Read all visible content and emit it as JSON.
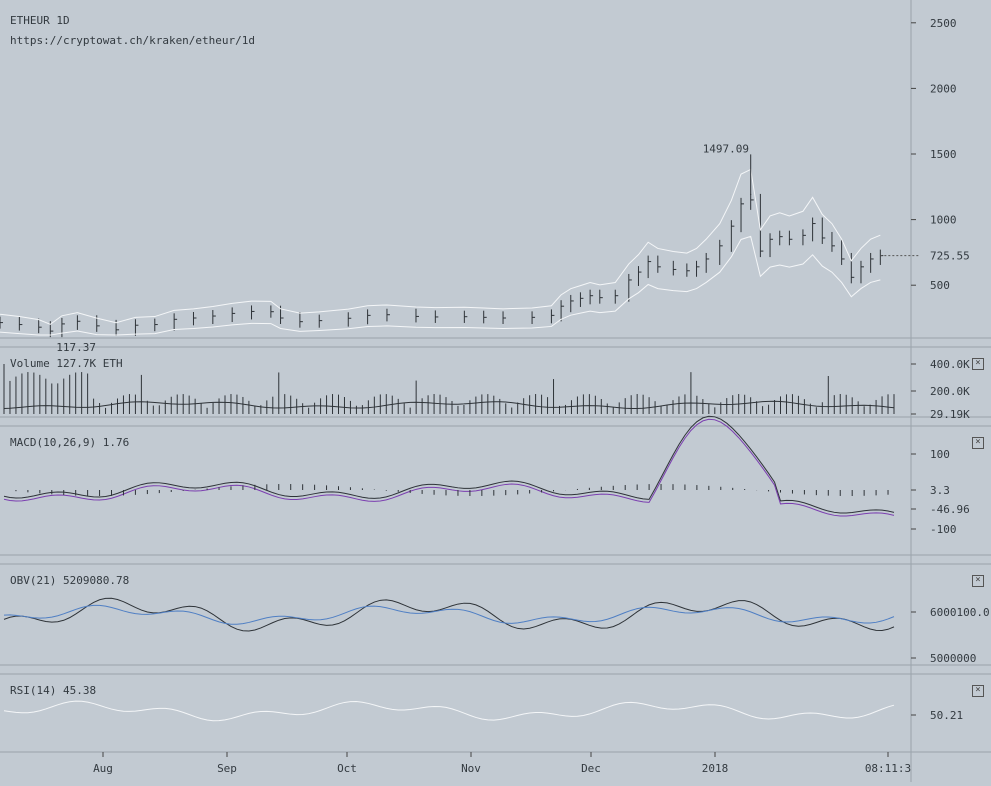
{
  "header": {
    "symbol": "ETHEUR 1D",
    "url": "https://cryptowat.ch/kraken/etheur/1d"
  },
  "time_axis": {
    "labels": [
      "Aug",
      "Sep",
      "Oct",
      "Nov",
      "Dec",
      "2018",
      "08:11:3"
    ]
  },
  "colors": {
    "background": "#c2cad2",
    "price": "#2e3338",
    "bollinger": "#f4f6f8",
    "signal": "#7b3fb0",
    "obv_ma": "#4f7fc4",
    "rsi": "#f4f6f8",
    "text": "#333a40"
  },
  "panels": {
    "volume": {
      "label": "Volume 127.7K ETH",
      "ticks": [
        "400.0K",
        "200.0K",
        "29.19K"
      ]
    },
    "macd": {
      "label": "MACD(10,26,9) 1.76",
      "ticks": [
        "100",
        "3.3",
        "-46.96",
        "-100"
      ]
    },
    "obv": {
      "label": "OBV(21) 5209080.78",
      "ticks": [
        "6000100.0",
        "5000000"
      ]
    },
    "rsi": {
      "label": "RSI(14) 45.38",
      "ticks": [
        "50.21"
      ]
    }
  },
  "chart_data": {
    "type": "candlestick",
    "title": "ETHEUR 1D",
    "price_ticks": [
      500,
      1000,
      1500,
      2000,
      2500
    ],
    "y_range": [
      250,
      2750
    ],
    "annotations": {
      "high": "1497.09",
      "low": "117.37",
      "last": "725.55"
    },
    "series": [
      {
        "x": 0,
        "y": 215
      },
      {
        "x": 10,
        "y": 200
      },
      {
        "x": 20,
        "y": 180
      },
      {
        "x": 26,
        "y": 150
      },
      {
        "x": 32,
        "y": 205
      },
      {
        "x": 40,
        "y": 225
      },
      {
        "x": 50,
        "y": 190
      },
      {
        "x": 60,
        "y": 160
      },
      {
        "x": 70,
        "y": 195
      },
      {
        "x": 80,
        "y": 200
      },
      {
        "x": 90,
        "y": 240
      },
      {
        "x": 100,
        "y": 250
      },
      {
        "x": 110,
        "y": 265
      },
      {
        "x": 120,
        "y": 285
      },
      {
        "x": 130,
        "y": 300
      },
      {
        "x": 140,
        "y": 298
      },
      {
        "x": 145,
        "y": 250
      },
      {
        "x": 155,
        "y": 222
      },
      {
        "x": 165,
        "y": 230
      },
      {
        "x": 180,
        "y": 248
      },
      {
        "x": 190,
        "y": 270
      },
      {
        "x": 200,
        "y": 275
      },
      {
        "x": 215,
        "y": 262
      },
      {
        "x": 225,
        "y": 258
      },
      {
        "x": 240,
        "y": 260
      },
      {
        "x": 250,
        "y": 255
      },
      {
        "x": 260,
        "y": 250
      },
      {
        "x": 275,
        "y": 255
      },
      {
        "x": 285,
        "y": 270
      },
      {
        "x": 290,
        "y": 340
      },
      {
        "x": 295,
        "y": 380
      },
      {
        "x": 300,
        "y": 400
      },
      {
        "x": 305,
        "y": 420
      },
      {
        "x": 310,
        "y": 405
      },
      {
        "x": 318,
        "y": 420
      },
      {
        "x": 325,
        "y": 540
      },
      {
        "x": 330,
        "y": 600
      },
      {
        "x": 335,
        "y": 680
      },
      {
        "x": 340,
        "y": 640
      },
      {
        "x": 348,
        "y": 620
      },
      {
        "x": 355,
        "y": 610
      },
      {
        "x": 360,
        "y": 640
      },
      {
        "x": 365,
        "y": 700
      },
      {
        "x": 372,
        "y": 800
      },
      {
        "x": 378,
        "y": 950
      },
      {
        "x": 383,
        "y": 1120
      },
      {
        "x": 388,
        "y": 1150
      },
      {
        "x": 393,
        "y": 760
      },
      {
        "x": 398,
        "y": 850
      },
      {
        "x": 403,
        "y": 870
      },
      {
        "x": 408,
        "y": 850
      },
      {
        "x": 415,
        "y": 880
      },
      {
        "x": 420,
        "y": 970
      },
      {
        "x": 425,
        "y": 860
      },
      {
        "x": 430,
        "y": 800
      },
      {
        "x": 435,
        "y": 700
      },
      {
        "x": 440,
        "y": 560
      },
      {
        "x": 445,
        "y": 640
      },
      {
        "x": 450,
        "y": 700
      },
      {
        "x": 455,
        "y": 725.55
      }
    ],
    "x_range": [
      0,
      460
    ]
  }
}
